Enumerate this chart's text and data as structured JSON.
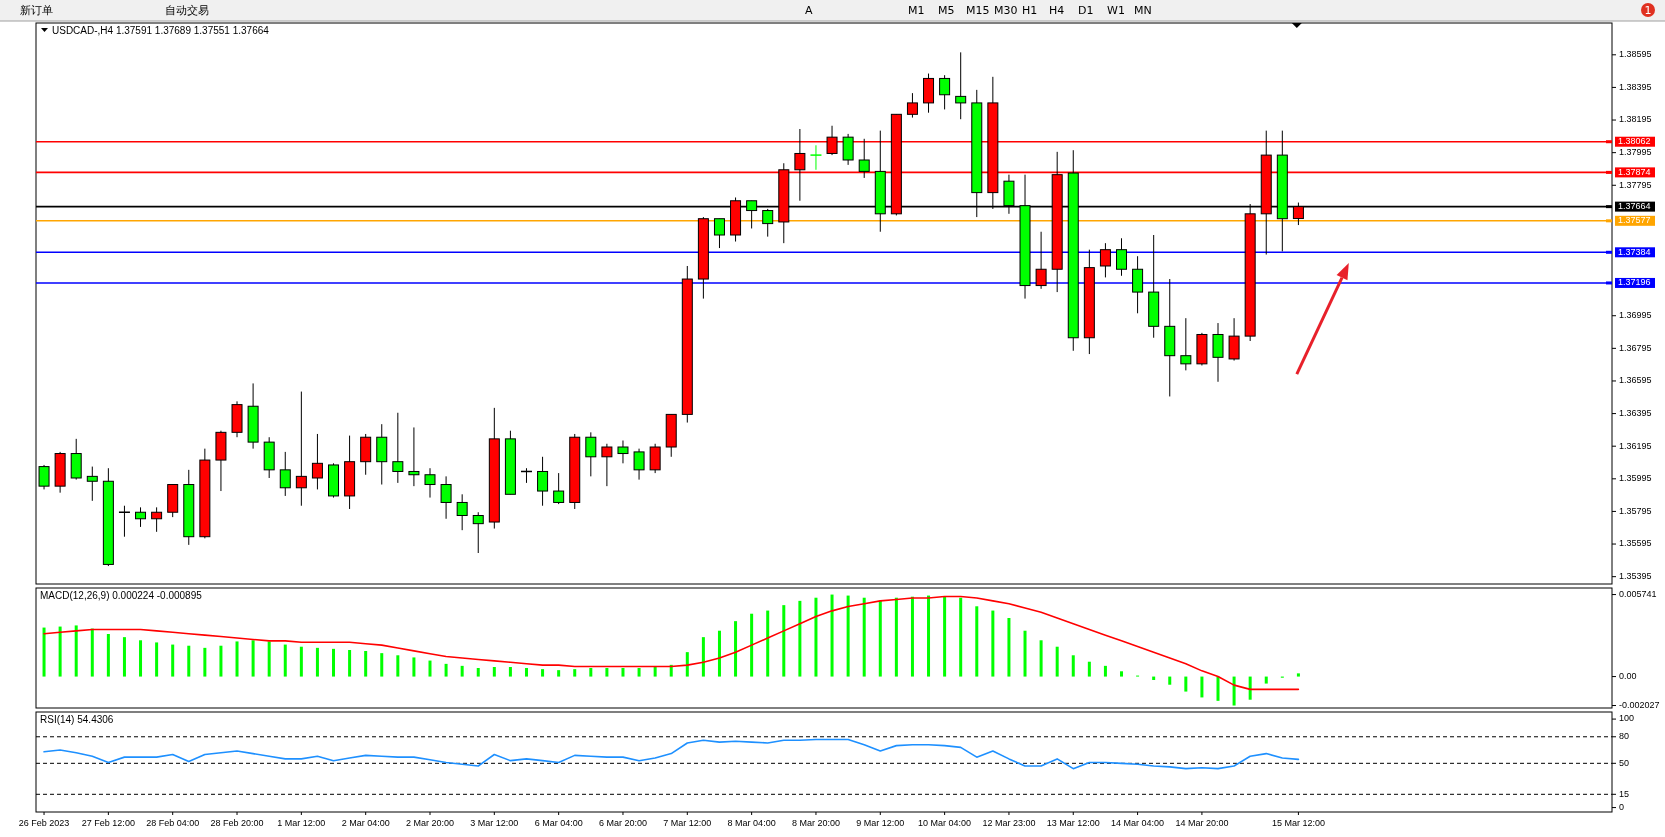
{
  "chart_data": [
    {
      "type": "candlestick",
      "title": "USDCAD-,H4 1.37591 1.37689 1.37551 1.37664",
      "categories": [
        null,
        null,
        null,
        null,
        null,
        null,
        null,
        null,
        null,
        null,
        null,
        null,
        null,
        null,
        null,
        null,
        null,
        null,
        null,
        null,
        null,
        null,
        null,
        null,
        null,
        null,
        null,
        null,
        null,
        null,
        null,
        null,
        null,
        null,
        null,
        null,
        null,
        null,
        null,
        null,
        null,
        null,
        null,
        null,
        null,
        null,
        null,
        null,
        null,
        null,
        null,
        null,
        null,
        null,
        null,
        null,
        null,
        null,
        null,
        null,
        null,
        null,
        null,
        null,
        null,
        null,
        null,
        null,
        null,
        null,
        null,
        null,
        null,
        null,
        null,
        null,
        null,
        null,
        null,
        null,
        null,
        null,
        null,
        null,
        null,
        null,
        null,
        null,
        null,
        null,
        null,
        null,
        null,
        null,
        null,
        null,
        null,
        null
      ],
      "ohlc": [
        [
          1.3607,
          1.3608,
          1.3593,
          1.3595
        ],
        [
          1.3595,
          1.3616,
          1.3591,
          1.3615
        ],
        [
          1.3615,
          1.3624,
          1.3599,
          1.36
        ],
        [
          1.3601,
          1.3607,
          1.3586,
          1.3598
        ],
        [
          1.3598,
          1.3606,
          1.3546,
          1.3547
        ],
        [
          1.3579,
          1.3583,
          1.3564,
          1.3579
        ],
        [
          1.3579,
          1.3582,
          1.357,
          1.3575
        ],
        [
          1.3575,
          1.3582,
          1.3567,
          1.3579
        ],
        [
          1.3579,
          1.3596,
          1.3576,
          1.3596
        ],
        [
          1.3596,
          1.3605,
          1.3559,
          1.3564
        ],
        [
          1.3564,
          1.3618,
          1.3563,
          1.3611
        ],
        [
          1.3611,
          1.3629,
          1.3592,
          1.3628
        ],
        [
          1.3628,
          1.3647,
          1.3625,
          1.3645
        ],
        [
          1.3644,
          1.3658,
          1.3618,
          1.3622
        ],
        [
          1.3622,
          1.3625,
          1.36,
          1.3605
        ],
        [
          1.3605,
          1.3616,
          1.3589,
          1.3594
        ],
        [
          1.3594,
          1.3653,
          1.3583,
          1.3601
        ],
        [
          1.36,
          1.3627,
          1.3593,
          1.3609
        ],
        [
          1.3608,
          1.3609,
          1.3588,
          1.3589
        ],
        [
          1.3589,
          1.3626,
          1.3581,
          1.361
        ],
        [
          1.361,
          1.3627,
          1.3602,
          1.3625
        ],
        [
          1.3625,
          1.3633,
          1.3596,
          1.361
        ],
        [
          1.361,
          1.364,
          1.3597,
          1.3604
        ],
        [
          1.3604,
          1.3631,
          1.3595,
          1.3602
        ],
        [
          1.3602,
          1.3606,
          1.3588,
          1.3596
        ],
        [
          1.3596,
          1.3601,
          1.3575,
          1.3585
        ],
        [
          1.3585,
          1.359,
          1.3568,
          1.3577
        ],
        [
          1.3577,
          1.3579,
          1.3554,
          1.3572
        ],
        [
          1.3573,
          1.3643,
          1.3569,
          1.3624
        ],
        [
          1.3624,
          1.3629,
          1.359,
          1.359
        ],
        [
          1.3604,
          1.3606,
          1.3597,
          1.3604
        ],
        [
          1.3604,
          1.3613,
          1.3583,
          1.3592
        ],
        [
          1.3592,
          1.3603,
          1.3584,
          1.3585
        ],
        [
          1.3585,
          1.3627,
          1.3581,
          1.3625
        ],
        [
          1.3625,
          1.3628,
          1.3601,
          1.3613
        ],
        [
          1.3613,
          1.3621,
          1.3595,
          1.3619
        ],
        [
          1.3619,
          1.3623,
          1.3609,
          1.3615
        ],
        [
          1.3616,
          1.3618,
          1.3599,
          1.3605
        ],
        [
          1.3605,
          1.3621,
          1.3603,
          1.3619
        ],
        [
          1.3619,
          1.3639,
          1.3613,
          1.3639
        ],
        [
          1.3639,
          1.373,
          1.3634,
          1.3722
        ],
        [
          1.3722,
          1.376,
          1.371,
          1.3759
        ],
        [
          1.3759,
          1.3759,
          1.3741,
          1.3749
        ],
        [
          1.3749,
          1.3772,
          1.3745,
          1.377
        ],
        [
          1.377,
          1.377,
          1.3753,
          1.3764
        ],
        [
          1.3764,
          1.3765,
          1.3748,
          1.3756
        ],
        [
          1.3757,
          1.3793,
          1.3744,
          1.3789
        ],
        [
          1.3789,
          1.3814,
          1.377,
          1.3799
        ],
        [
          1.3798,
          1.3804,
          1.3789,
          1.3798
        ],
        [
          1.3799,
          1.3816,
          1.3798,
          1.3809
        ],
        [
          1.3809,
          1.3811,
          1.3792,
          1.3795
        ],
        [
          1.3795,
          1.3808,
          1.3784,
          1.3788
        ],
        [
          1.3788,
          1.3813,
          1.3751,
          1.3762
        ],
        [
          1.3762,
          1.3823,
          1.3761,
          1.3823
        ],
        [
          1.3823,
          1.3836,
          1.3821,
          1.383
        ],
        [
          1.383,
          1.3848,
          1.3824,
          1.3845
        ],
        [
          1.3845,
          1.3847,
          1.3826,
          1.3835
        ],
        [
          1.3834,
          1.3861,
          1.382,
          1.383
        ],
        [
          1.383,
          1.3838,
          1.376,
          1.3775
        ],
        [
          1.3775,
          1.3846,
          1.3765,
          1.383
        ],
        [
          1.3782,
          1.3786,
          1.3762,
          1.3767
        ],
        [
          1.3767,
          1.3786,
          1.371,
          1.3718
        ],
        [
          1.3718,
          1.3751,
          1.3716,
          1.3728
        ],
        [
          1.3728,
          1.38,
          1.3714,
          1.3786
        ],
        [
          1.3787,
          1.3801,
          1.3678,
          1.3686
        ],
        [
          1.3686,
          1.374,
          1.3676,
          1.3729
        ],
        [
          1.373,
          1.3744,
          1.3723,
          1.374
        ],
        [
          1.374,
          1.3747,
          1.3724,
          1.3728
        ],
        [
          1.3728,
          1.3736,
          1.3701,
          1.3714
        ],
        [
          1.3714,
          1.3749,
          1.3686,
          1.3693
        ],
        [
          1.3693,
          1.3722,
          1.365,
          1.3675
        ],
        [
          1.3675,
          1.3698,
          1.3666,
          1.367
        ],
        [
          1.367,
          1.3689,
          1.3669,
          1.3688
        ],
        [
          1.3688,
          1.3695,
          1.3659,
          1.3674
        ],
        [
          1.3673,
          1.3698,
          1.3672,
          1.3687
        ],
        [
          1.3687,
          1.3768,
          1.3684,
          1.3762
        ],
        [
          1.3762,
          1.3813,
          1.3737,
          1.3798
        ],
        [
          1.3798,
          1.3813,
          1.3739,
          1.3759
        ],
        [
          1.37591,
          1.37689,
          1.37551,
          1.37664
        ],
        null,
        null,
        null,
        null,
        null,
        null,
        null,
        null,
        null,
        null,
        null,
        null,
        null,
        null,
        null,
        null,
        null,
        null,
        null
      ],
      "colors": [
        "#00ff00",
        "#ff0000",
        "#00ff00",
        "#00ff00",
        "#00ff00",
        "#000000",
        "#00ff00",
        "#ff0000",
        "#ff0000",
        "#00ff00",
        "#ff0000",
        "#ff0000",
        "#ff0000",
        "#00ff00",
        "#00ff00",
        "#00ff00",
        "#ff0000",
        "#ff0000",
        "#00ff00",
        "#ff0000",
        "#ff0000",
        "#00ff00",
        "#00ff00",
        "#00ff00",
        "#00ff00",
        "#00ff00",
        "#00ff00",
        "#00ff00",
        "#ff0000",
        "#00ff00",
        "#000000",
        "#00ff00",
        "#00ff00",
        "#ff0000",
        "#00ff00",
        "#ff0000",
        "#00ff00",
        "#00ff00",
        "#ff0000",
        "#ff0000",
        "#ff0000",
        "#ff0000",
        "#00ff00",
        "#ff0000",
        "#00ff00",
        "#00ff00",
        "#ff0000",
        "#ff0000",
        "#00ff00",
        "#ff0000",
        "#00ff00",
        "#00ff00",
        "#00ff00",
        "#ff0000",
        "#ff0000",
        "#ff0000",
        "#00ff00",
        "#00ff00",
        "#00ff00",
        "#ff0000",
        "#00ff00",
        "#00ff00",
        "#ff0000",
        "#ff0000",
        "#00ff00",
        "#ff0000",
        "#ff0000",
        "#00ff00",
        "#00ff00",
        "#00ff00",
        "#00ff00",
        "#00ff00",
        "#ff0000",
        "#00ff00",
        "#ff0000",
        "#ff0000",
        "#ff0000",
        "#00ff00",
        "#ff0000",
        null,
        null,
        null,
        null,
        null,
        null,
        null,
        null,
        null,
        null,
        null,
        null,
        null,
        null,
        null,
        null,
        null,
        null,
        null
      ],
      "ylim": [
        1.3535,
        1.3879
      ],
      "yticks": [
        1.38595,
        1.38395,
        1.38195,
        1.37995,
        1.37795,
        1.36995,
        1.36795,
        1.36595,
        1.36395,
        1.36195,
        1.35995,
        1.35795,
        1.35595,
        1.35395
      ],
      "tick_labels": "y",
      "ref_lines": [
        {
          "axis": "y",
          "value": 1.38062,
          "label": "1.38062",
          "color": "#ff0000"
        },
        {
          "axis": "y",
          "value": 1.37874,
          "label": "1.37874",
          "color": "#ff0000"
        },
        {
          "axis": "y",
          "value": 1.37664,
          "label": "1.37664",
          "color": "#000000"
        },
        {
          "axis": "y",
          "value": 1.37577,
          "label": "1.37577",
          "color": "#ffa500"
        },
        {
          "axis": "y",
          "value": 1.37384,
          "label": "1.37384",
          "color": "#0000ff"
        },
        {
          "axis": "y",
          "value": 1.37196,
          "label": "1.37196",
          "color": "#0000ff"
        }
      ]
    },
    {
      "type": "bar",
      "title": "MACD(12,26,9) 0.000224 -0.000895",
      "categories": [
        null,
        null,
        null,
        null,
        null,
        null,
        null,
        null,
        null,
        null,
        null,
        null,
        null,
        null,
        null,
        null,
        null,
        null,
        null,
        null,
        null,
        null,
        null,
        null,
        null,
        null,
        null,
        null,
        null,
        null,
        null,
        null,
        null,
        null,
        null,
        null,
        null,
        null,
        null,
        null,
        null,
        null,
        null,
        null,
        null,
        null,
        null,
        null,
        null,
        null,
        null,
        null,
        null,
        null,
        null,
        null,
        null,
        null,
        null,
        null,
        null,
        null,
        null,
        null,
        null,
        null,
        null,
        null,
        null,
        null,
        null,
        null,
        null,
        null,
        null,
        null,
        null,
        null,
        null,
        null,
        null,
        null,
        null,
        null,
        null,
        null,
        null,
        null,
        null,
        null,
        null,
        null,
        null,
        null,
        null,
        null,
        null,
        null
      ],
      "series": [
        {
          "type": "bar",
          "color": "#00ff00",
          "values": [
            0.00343,
            0.0035,
            0.00358,
            0.00336,
            0.00298,
            0.00276,
            0.00254,
            0.00239,
            0.00224,
            0.00216,
            0.00201,
            0.00216,
            0.00246,
            0.00254,
            0.00246,
            0.00224,
            0.00209,
            0.00201,
            0.00194,
            0.00186,
            0.00179,
            0.00164,
            0.00149,
            0.00134,
            0.00112,
            0.00089,
            0.00075,
            0.0006,
            0.00067,
            0.00067,
            0.0006,
            0.00052,
            0.00045,
            0.00052,
            0.0006,
            0.0006,
            0.0006,
            0.0006,
            0.00067,
            0.00082,
            0.00171,
            0.00276,
            0.00321,
            0.00388,
            0.0044,
            0.00462,
            0.005,
            0.0053,
            0.00552,
            0.005741,
            0.00567,
            0.00552,
            0.0053,
            0.00552,
            0.00559,
            0.00567,
            0.00559,
            0.00552,
            0.00492,
            0.00462,
            0.0041,
            0.00321,
            0.00254,
            0.00209,
            0.00149,
            0.00104,
            0.00075,
            0.00037,
            7e-05,
            -0.00024,
            -0.00057,
            -0.00105,
            -0.00146,
            -0.0017,
            -0.002027,
            -0.00162,
            -0.00049,
            -8e-05,
            0.000224,
            null,
            null,
            null,
            null,
            null,
            null,
            null,
            null,
            null,
            null,
            null,
            null,
            null,
            null,
            null,
            null,
            null,
            null,
            null
          ]
        },
        {
          "type": "line",
          "color": "#ff0000",
          "values": [
            0.003,
            0.0031,
            0.0032,
            0.0033,
            0.0033,
            0.0033,
            0.0033,
            0.0032,
            0.0031,
            0.003,
            0.0029,
            0.0028,
            0.0027,
            0.0026,
            0.0025,
            0.0025,
            0.0024,
            0.0024,
            0.0024,
            0.0024,
            0.0023,
            0.0022,
            0.002,
            0.0018,
            0.0016,
            0.0014,
            0.0013,
            0.0012,
            0.0011,
            0.001,
            0.0009,
            0.0008,
            0.0008,
            0.0007,
            0.0007,
            0.0007,
            0.0007,
            0.0007,
            0.0007,
            0.0007,
            0.0008,
            0.001,
            0.0013,
            0.0017,
            0.0022,
            0.0027,
            0.0032,
            0.0037,
            0.0042,
            0.0046,
            0.0049,
            0.0051,
            0.0053,
            0.0054,
            0.0055,
            0.0055,
            0.0056,
            0.0056,
            0.0055,
            0.0053,
            0.0051,
            0.0048,
            0.0045,
            0.0041,
            0.0037,
            0.0033,
            0.0029,
            0.0025,
            0.0021,
            0.0017,
            0.0013,
            0.0009,
            0.0004,
            0.0,
            -0.0006,
            -0.000895,
            -0.000895,
            -0.000895,
            -0.000895,
            null,
            null,
            null,
            null,
            null,
            null,
            null,
            null,
            null,
            null,
            null,
            null,
            null,
            null,
            null,
            null,
            null,
            null,
            null
          ]
        }
      ],
      "ylim": [
        -0.0022,
        0.0062
      ],
      "yticks": [
        0.005741,
        {
          "value": 0,
          "label": "0.00"
        },
        -0.002027
      ],
      "tick_labels": "y"
    },
    {
      "type": "line",
      "title": "RSI(14) 54.4306",
      "categories": [
        "26 Feb 2023",
        null,
        null,
        null,
        "27 Feb 12:00",
        null,
        null,
        null,
        "28 Feb 04:00",
        null,
        null,
        null,
        "28 Feb 20:00",
        null,
        null,
        null,
        "1 Mar 12:00",
        null,
        null,
        null,
        "2 Mar 04:00",
        null,
        null,
        null,
        "2 Mar 20:00",
        null,
        null,
        null,
        "3 Mar 12:00",
        null,
        null,
        null,
        "6 Mar 04:00",
        null,
        null,
        null,
        "6 Mar 20:00",
        null,
        null,
        null,
        "7 Mar 12:00",
        null,
        null,
        null,
        "8 Mar 04:00",
        null,
        null,
        null,
        "8 Mar 20:00",
        null,
        null,
        null,
        "9 Mar 12:00",
        null,
        null,
        null,
        "10 Mar 04:00",
        null,
        null,
        null,
        "12 Mar 23:00",
        null,
        null,
        null,
        "13 Mar 12:00",
        null,
        null,
        null,
        "14 Mar 04:00",
        null,
        null,
        null,
        "14 Mar 20:00",
        null,
        null,
        null,
        null,
        null,
        "15 Mar 12:00",
        null,
        null,
        null,
        null,
        null,
        null,
        null,
        null,
        null,
        null,
        null,
        null,
        null,
        null,
        null,
        null,
        null,
        null,
        null
      ],
      "series": [
        {
          "color": "#1e90ff",
          "values": [
            63,
            65,
            62,
            58,
            51,
            57,
            57,
            57,
            60,
            52,
            60,
            62,
            64,
            61,
            58,
            55,
            55,
            58,
            53,
            56,
            59,
            58,
            57,
            57,
            54,
            51,
            49,
            47,
            60,
            53,
            55,
            53,
            51,
            59,
            58,
            57,
            57,
            53,
            56,
            61,
            73,
            76,
            74,
            75,
            74,
            73,
            76,
            76,
            77,
            77,
            77,
            71,
            64,
            70,
            71,
            71,
            70,
            68,
            57,
            64,
            55,
            47,
            47,
            55,
            44,
            51,
            51,
            50,
            49,
            47,
            46,
            44,
            45,
            44,
            47,
            58,
            61,
            56,
            54.4306,
            null,
            null,
            null,
            null,
            null,
            null,
            null,
            null,
            null,
            null,
            null,
            null,
            null,
            null,
            null,
            null,
            null,
            null,
            null
          ]
        }
      ],
      "ylim": [
        -5,
        108
      ],
      "yticks": [
        100,
        80,
        50,
        15,
        0
      ],
      "ref_lines": [
        {
          "axis": "y",
          "value": 80,
          "color": "#000000",
          "line_style": "dashed"
        },
        {
          "axis": "y",
          "value": 50,
          "color": "#000000",
          "line_style": "dashed"
        },
        {
          "axis": "y",
          "value": 15,
          "color": "#000000",
          "line_style": "dashed"
        }
      ]
    },
    {
      "type": "other",
      "annotations": [
        "新订单",
        "自动交易",
        "A",
        "M1",
        "M5",
        "M15",
        "M30",
        "H1",
        "H4",
        "D1",
        "W1",
        "MN",
        "1"
      ]
    }
  ]
}
